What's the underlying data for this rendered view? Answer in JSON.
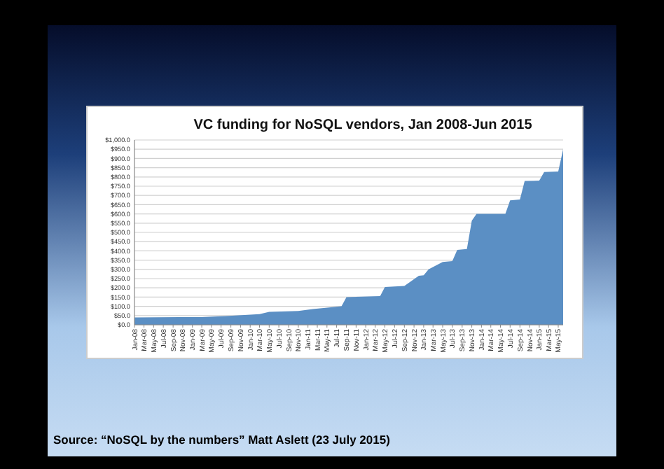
{
  "chart_data": {
    "type": "area",
    "title": "VC funding for NoSQL vendors, Jan 2008-Jun 2015",
    "annotations": [
      "Source: “NoSQL by the numbers” Matt Aslett (23 July 2015)"
    ],
    "x": [
      "2008-01",
      "2009-03",
      "2009-08",
      "2010-03",
      "2010-05",
      "2010-11",
      "2011-02",
      "2011-08",
      "2011-09",
      "2012-04",
      "2012-05",
      "2012-09",
      "2012-12",
      "2013-01",
      "2013-02",
      "2013-05",
      "2013-07",
      "2013-08",
      "2013-10",
      "2013-11",
      "2013-12",
      "2014-06",
      "2014-07",
      "2014-09",
      "2014-10",
      "2015-01",
      "2015-02",
      "2015-05",
      "2015-06"
    ],
    "series": [
      {
        "color": "#5b8fc4",
        "values": [
          40,
          42,
          47,
          58,
          70,
          75,
          85,
          100,
          150,
          155,
          205,
          210,
          265,
          268,
          300,
          340,
          345,
          405,
          410,
          563,
          600,
          600,
          673,
          678,
          778,
          780,
          827,
          830,
          950
        ]
      }
    ],
    "xlim": [
      "2008-01",
      "2015-06"
    ],
    "xticks": [
      {
        "value": "2008-01",
        "label": "Jan-08"
      },
      {
        "value": "2008-03",
        "label": "Mar-08"
      },
      {
        "value": "2008-05",
        "label": "May-08"
      },
      {
        "value": "2008-07",
        "label": "Jul-08"
      },
      {
        "value": "2008-09",
        "label": "Sep-08"
      },
      {
        "value": "2008-11",
        "label": "Nov-08"
      },
      {
        "value": "2009-01",
        "label": "Jan-09"
      },
      {
        "value": "2009-03",
        "label": "Mar-09"
      },
      {
        "value": "2009-05",
        "label": "May-09"
      },
      {
        "value": "2009-07",
        "label": "Jul-09"
      },
      {
        "value": "2009-09",
        "label": "Sep-09"
      },
      {
        "value": "2009-11",
        "label": "Nov-09"
      },
      {
        "value": "2010-01",
        "label": "Jan-10"
      },
      {
        "value": "2010-03",
        "label": "Mar-10"
      },
      {
        "value": "2010-05",
        "label": "May-10"
      },
      {
        "value": "2010-07",
        "label": "Jul-10"
      },
      {
        "value": "2010-09",
        "label": "Sep-10"
      },
      {
        "value": "2010-11",
        "label": "Nov-10"
      },
      {
        "value": "2011-01",
        "label": "Jan-11"
      },
      {
        "value": "2011-03",
        "label": "Mar-11"
      },
      {
        "value": "2011-05",
        "label": "May-11"
      },
      {
        "value": "2011-07",
        "label": "Jul-11"
      },
      {
        "value": "2011-09",
        "label": "Sep-11"
      },
      {
        "value": "2011-11",
        "label": "Nov-11"
      },
      {
        "value": "2012-01",
        "label": "Jan-12"
      },
      {
        "value": "2012-03",
        "label": "Mar-12"
      },
      {
        "value": "2012-05",
        "label": "May-12"
      },
      {
        "value": "2012-07",
        "label": "Jul-12"
      },
      {
        "value": "2012-09",
        "label": "Sep-12"
      },
      {
        "value": "2012-11",
        "label": "Nov-12"
      },
      {
        "value": "2013-01",
        "label": "Jan-13"
      },
      {
        "value": "2013-03",
        "label": "Mar-13"
      },
      {
        "value": "2013-05",
        "label": "May-13"
      },
      {
        "value": "2013-07",
        "label": "Jul-13"
      },
      {
        "value": "2013-09",
        "label": "Sep-13"
      },
      {
        "value": "2013-11",
        "label": "Nov-13"
      },
      {
        "value": "2014-01",
        "label": "Jan-14"
      },
      {
        "value": "2014-03",
        "label": "Mar-14"
      },
      {
        "value": "2014-05",
        "label": "May-14"
      },
      {
        "value": "2014-07",
        "label": "Jul-14"
      },
      {
        "value": "2014-09",
        "label": "Sep-14"
      },
      {
        "value": "2014-11",
        "label": "Nov-14"
      },
      {
        "value": "2015-01",
        "label": "Jan-15"
      },
      {
        "value": "2015-03",
        "label": "Mar-15"
      },
      {
        "value": "2015-05",
        "label": "May-15"
      }
    ],
    "ylim": [
      0,
      1000
    ],
    "yticks": [
      {
        "value": 0,
        "label": "$0.0"
      },
      {
        "value": 50,
        "label": "$50.0"
      },
      {
        "value": 100,
        "label": "$100.0"
      },
      {
        "value": 150,
        "label": "$150.0"
      },
      {
        "value": 200,
        "label": "$200.0"
      },
      {
        "value": 250,
        "label": "$250.0"
      },
      {
        "value": 300,
        "label": "$300.0"
      },
      {
        "value": 350,
        "label": "$350.0"
      },
      {
        "value": 400,
        "label": "$400.0"
      },
      {
        "value": 450,
        "label": "$450.0"
      },
      {
        "value": 500,
        "label": "$500.0"
      },
      {
        "value": 550,
        "label": "$550.0"
      },
      {
        "value": 600,
        "label": "$600.0"
      },
      {
        "value": 650,
        "label": "$650.0"
      },
      {
        "value": 700,
        "label": "$700.0"
      },
      {
        "value": 750,
        "label": "$750.0"
      },
      {
        "value": 800,
        "label": "$800.0"
      },
      {
        "value": 850,
        "label": "$850.0"
      },
      {
        "value": 900,
        "label": "$900.0"
      },
      {
        "value": 950,
        "label": "$950.0"
      },
      {
        "value": 1000,
        "label": "$1,000.0"
      }
    ],
    "grid": "y"
  }
}
